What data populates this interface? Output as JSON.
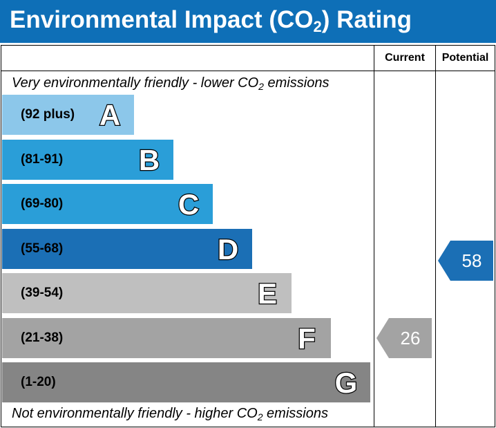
{
  "title": {
    "main": "Environmental Impact (CO",
    "sub": "2",
    "end": ") Rating"
  },
  "columns": {
    "current": "Current",
    "potential": "Potential"
  },
  "top_caption": {
    "before": "Very environmentally friendly - lower CO",
    "sub": "2",
    "after": " emissions"
  },
  "bottom_caption": {
    "before": "Not environmentally friendly - higher CO",
    "sub": "2",
    "after": " emissions"
  },
  "colors": {
    "header": "#0e6fb7"
  },
  "chart_data": {
    "type": "bar",
    "bands": [
      {
        "letter": "A",
        "range": "(92 plus)",
        "color": "#8cc7ea"
      },
      {
        "letter": "B",
        "range": "(81-91)",
        "color": "#2a9ed8"
      },
      {
        "letter": "C",
        "range": "(69-80)",
        "color": "#2a9ed8"
      },
      {
        "letter": "D",
        "range": "(55-68)",
        "color": "#1b6fb5"
      },
      {
        "letter": "E",
        "range": "(39-54)",
        "color": "#bfbfbf"
      },
      {
        "letter": "F",
        "range": "(21-38)",
        "color": "#a3a3a3"
      },
      {
        "letter": "G",
        "range": "(1-20)",
        "color": "#858585"
      }
    ],
    "current": {
      "value": 26,
      "band": "F",
      "color": "#a3a3a3"
    },
    "potential": {
      "value": 58,
      "band": "D",
      "color": "#1b6fb5"
    }
  }
}
